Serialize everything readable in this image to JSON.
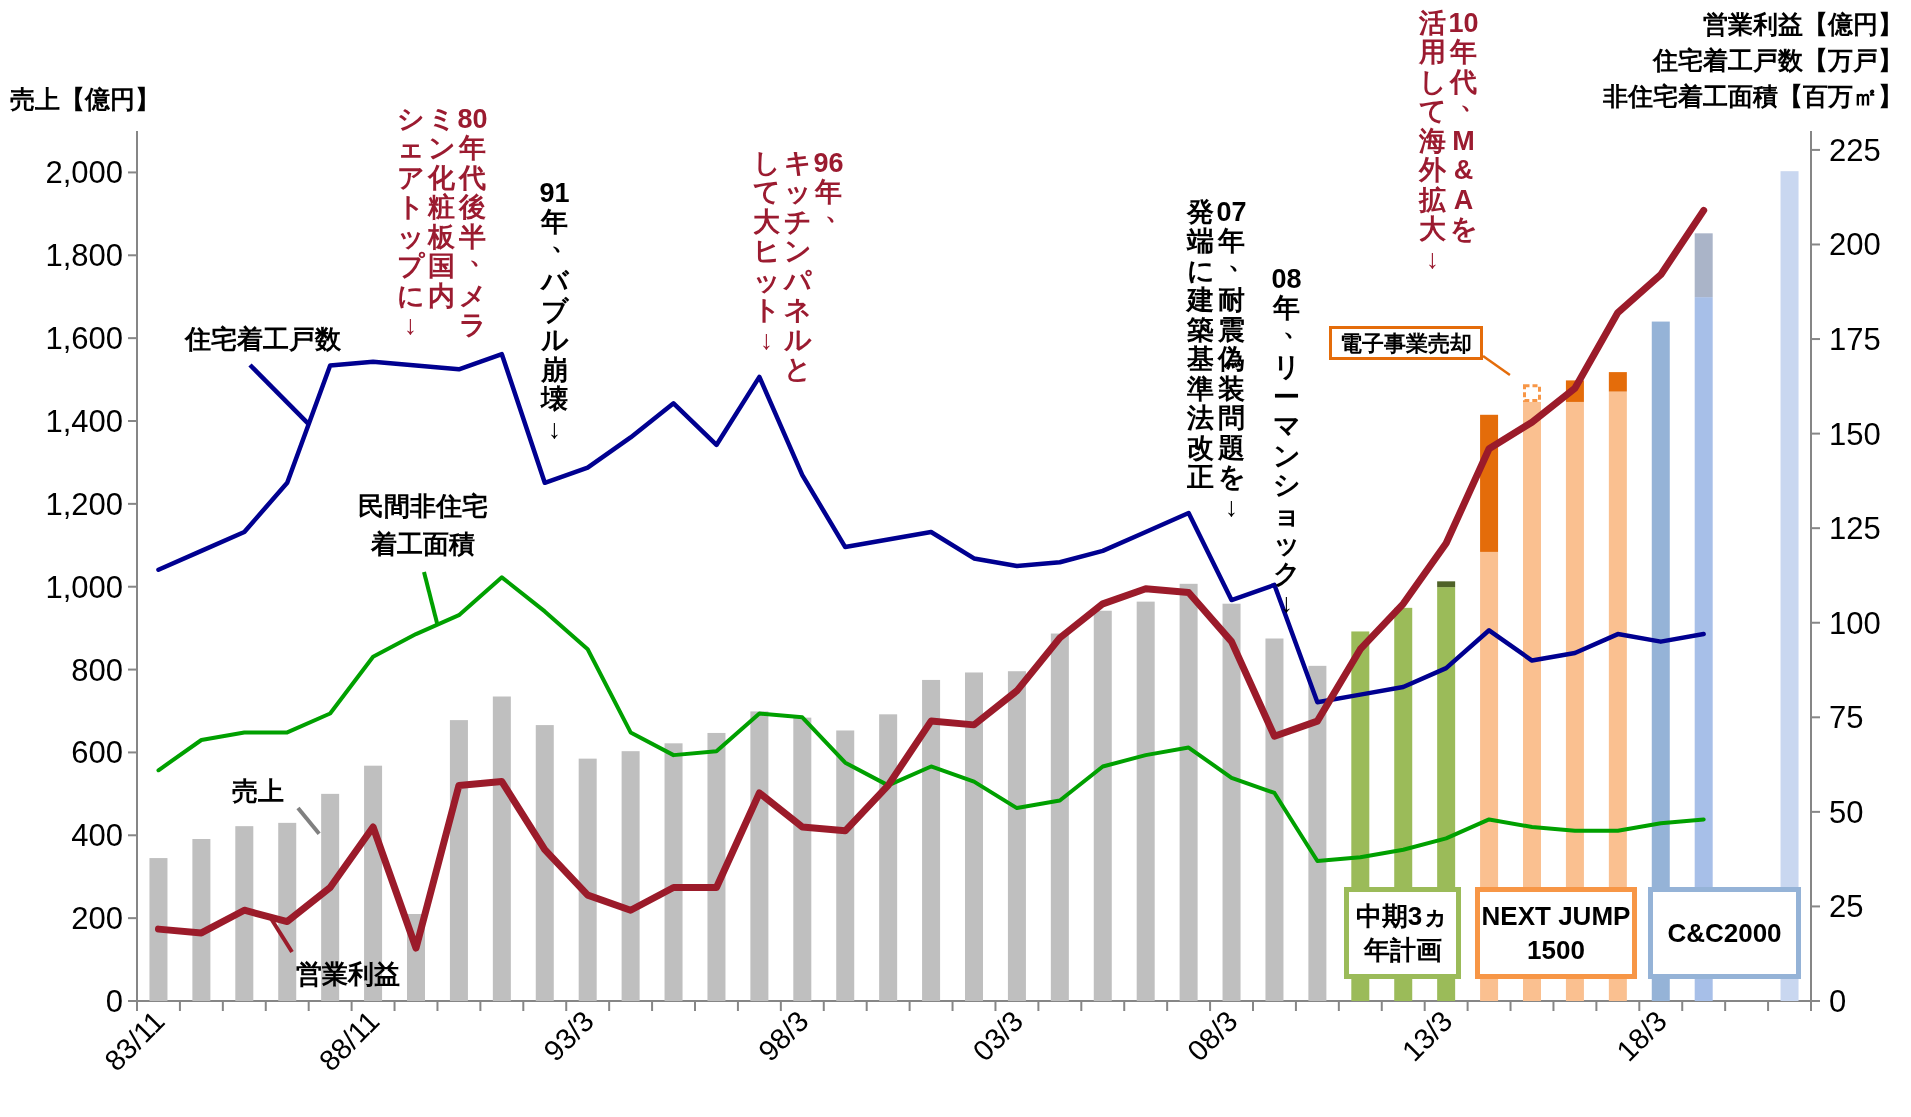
{
  "chart_data": {
    "type": "bar",
    "stacked": true,
    "categories": [
      "83/11",
      null,
      null,
      null,
      null,
      "88/11",
      null,
      null,
      null,
      null,
      "93/3",
      null,
      null,
      null,
      null,
      "98/3",
      null,
      null,
      null,
      null,
      "03/3",
      null,
      null,
      null,
      null,
      "08/3",
      null,
      null,
      null,
      null,
      "13/3",
      null,
      null,
      null,
      null,
      "18/3",
      null,
      null,
      null
    ],
    "ylabel": "売上【億円】",
    "y2label": "営業利益【億円】住宅着工戸数【万戸】非住宅着工面積【百万㎡】",
    "ylim": [
      0,
      2100
    ],
    "yticks": [
      0,
      200,
      400,
      600,
      800,
      {
        "value": 1000,
        "label": "1,000"
      },
      {
        "value": 1200,
        "label": "1,200"
      },
      {
        "value": 1400,
        "label": "1,400"
      },
      {
        "value": 1600,
        "label": "1,600"
      },
      {
        "value": 1800,
        "label": "1,800"
      },
      {
        "value": 2000,
        "label": "2,000"
      }
    ],
    "y2lim": [
      0,
      230
    ],
    "y2ticks": [
      0,
      25,
      50,
      75,
      100,
      125,
      150,
      175,
      200,
      225
    ],
    "series": [
      {
        "name": "売上",
        "values": [
          345,
          391,
          422,
          430,
          500,
          568,
          210,
          678,
          735,
          666,
          585,
          603,
          622,
          647,
          699,
          684,
          653,
          692,
          775,
          793,
          796,
          887,
          942,
          964,
          1007,
          959,
          875,
          809,
          892,
          949,
          999,
          1084,
          1446,
          1446,
          1471,
          1640,
          1699,
          null,
          2003
        ],
        "colors": [
          "#bfbfbf",
          "#bfbfbf",
          "#bfbfbf",
          "#bfbfbf",
          "#bfbfbf",
          "#bfbfbf",
          "#bfbfbf",
          "#bfbfbf",
          "#bfbfbf",
          "#bfbfbf",
          "#bfbfbf",
          "#bfbfbf",
          "#bfbfbf",
          "#bfbfbf",
          "#bfbfbf",
          "#bfbfbf",
          "#bfbfbf",
          "#bfbfbf",
          "#bfbfbf",
          "#bfbfbf",
          "#bfbfbf",
          "#bfbfbf",
          "#bfbfbf",
          "#bfbfbf",
          "#bfbfbf",
          "#bfbfbf",
          "#bfbfbf",
          "#bfbfbf",
          "#9bbb59",
          "#9bbb59",
          "#9bbb59",
          "#fac090",
          "#fac090",
          "#fac090",
          "#fac090",
          "#95b3d7",
          "#a7bfe8",
          null,
          "#c9d7f0"
        ]
      },
      {
        "values": [
          null,
          null,
          null,
          null,
          null,
          null,
          null,
          null,
          null,
          null,
          null,
          null,
          null,
          null,
          null,
          null,
          null,
          null,
          null,
          null,
          null,
          null,
          null,
          null,
          null,
          null,
          null,
          null,
          null,
          null,
          14,
          331,
          null,
          52,
          47,
          null,
          154,
          null,
          null
        ],
        "colors": [
          null,
          null,
          null,
          null,
          null,
          null,
          null,
          null,
          null,
          null,
          null,
          null,
          null,
          null,
          null,
          null,
          null,
          null,
          null,
          null,
          null,
          null,
          null,
          null,
          null,
          null,
          null,
          null,
          null,
          null,
          "#4f6228",
          "#e46c0a",
          null,
          "#e46c0a",
          "#e46c0a",
          null,
          "#aab4c8",
          null,
          null
        ]
      },
      {
        "line_style": "dashed",
        "color": "#f79646",
        "values": [
          null,
          null,
          null,
          null,
          null,
          null,
          null,
          null,
          null,
          null,
          null,
          null,
          null,
          null,
          null,
          null,
          null,
          null,
          null,
          null,
          null,
          null,
          null,
          null,
          null,
          null,
          null,
          null,
          null,
          null,
          null,
          null,
          43,
          null,
          null,
          null,
          null,
          null,
          null
        ]
      },
      {
        "type": "line",
        "axis": "y2",
        "name": "住宅着工戸数",
        "color": "#000090",
        "values": [
          114,
          119,
          124,
          137,
          168,
          169,
          168,
          167,
          171,
          137,
          141,
          149,
          158,
          147,
          165,
          139,
          120,
          122,
          124,
          117,
          115,
          116,
          119,
          124,
          129,
          106,
          110,
          79,
          81,
          83,
          88,
          98,
          90,
          92,
          97,
          95,
          97,
          null,
          null
        ]
      },
      {
        "type": "line",
        "axis": "y2",
        "name": "民間非住宅着工面積",
        "color": "#00a000",
        "values": [
          61,
          69,
          71,
          71,
          76,
          91,
          97,
          102,
          112,
          103,
          93,
          71,
          65,
          66,
          76,
          75,
          63,
          57,
          62,
          58,
          51,
          53,
          62,
          65,
          67,
          59,
          55,
          37,
          38,
          40,
          43,
          48,
          46,
          45,
          45,
          47,
          48,
          null,
          null
        ]
      },
      {
        "type": "line",
        "axis": "y2",
        "name": "営業利益",
        "color": "#9b1b2a",
        "values": [
          19,
          18,
          24,
          21,
          30,
          46,
          14,
          57,
          58,
          40,
          28,
          24,
          30,
          30,
          55,
          46,
          45,
          57,
          74,
          73,
          82,
          96,
          105,
          109,
          108,
          95,
          70,
          74,
          93,
          105,
          121,
          146,
          153,
          162,
          182,
          192,
          209,
          null,
          null
        ]
      }
    ],
    "annotations": [
      "80年代後半、メラ",
      "ミン化粧板国内",
      "シェアトップに↓",
      "91年、バブル崩壊↓",
      "96年、",
      "キッチンパネルと",
      "して大ヒット↓",
      "07年、耐震偽装問題を↓",
      "発端に建築基準法改正",
      "08年、リーマンショック↓",
      "10年代、M&Aを",
      "活用して海外拡大↓",
      "電子事業売却",
      "中期3ヵ年計画",
      "NEXT JUMP\n1500",
      "C&C2000"
    ]
  }
}
